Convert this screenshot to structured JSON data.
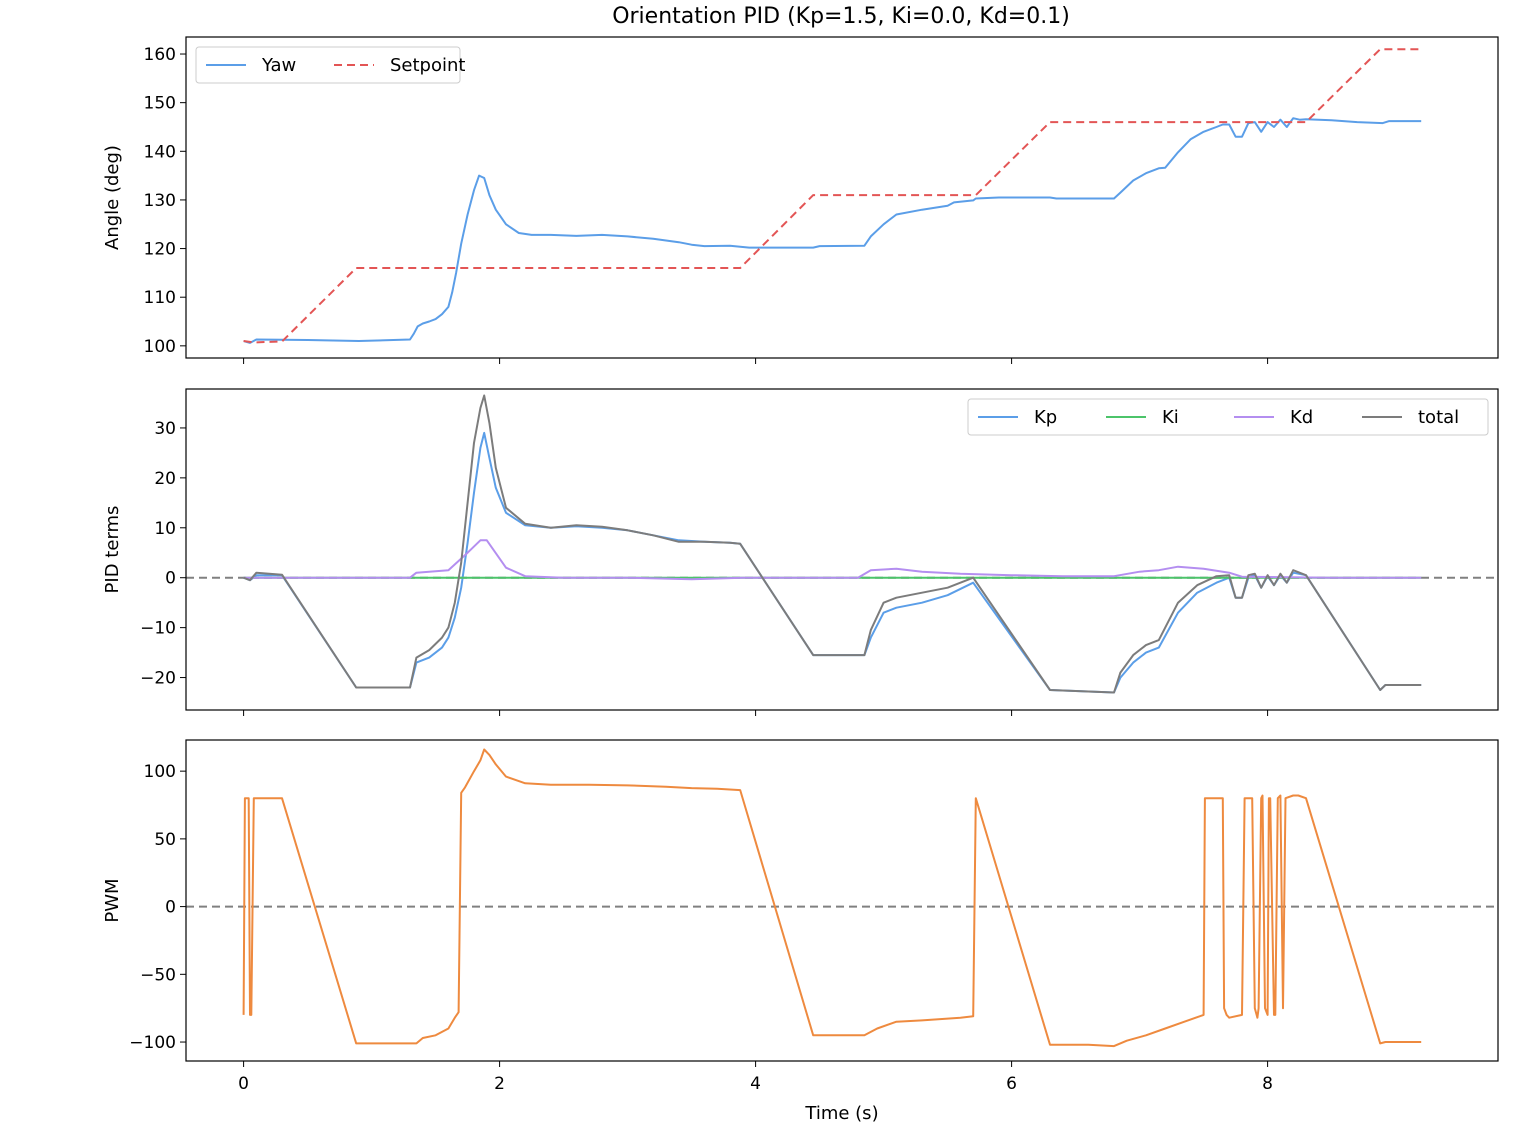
{
  "title": "Orientation PID  (Kp=1.5, Ki=0.0, Kd=0.1)",
  "chart_data": [
    {
      "type": "line",
      "ylabel": "Angle (deg)",
      "xlabel": "",
      "xlim": [
        -0.45,
        9.8
      ],
      "ylim": [
        97.5,
        163.5
      ],
      "xticks": [
        0,
        2,
        4,
        6,
        8
      ],
      "show_xticklabels": false,
      "yticks": [
        100,
        110,
        120,
        130,
        140,
        150,
        160
      ],
      "grid": false,
      "legend": "top-left",
      "zero_line": false,
      "series": [
        {
          "name": "Yaw",
          "color": "#5b9ee8",
          "dash": "solid",
          "x": [
            0,
            0.05,
            0.1,
            0.5,
            0.9,
            1.3,
            1.33,
            1.36,
            1.4,
            1.45,
            1.5,
            1.55,
            1.6,
            1.63,
            1.66,
            1.7,
            1.75,
            1.8,
            1.84,
            1.88,
            1.92,
            1.97,
            2.05,
            2.15,
            2.25,
            2.4,
            2.6,
            2.8,
            3.0,
            3.2,
            3.4,
            3.5,
            3.6,
            3.8,
            3.95,
            4.2,
            4.45,
            4.5,
            4.85,
            4.9,
            5.0,
            5.1,
            5.3,
            5.5,
            5.55,
            5.7,
            5.72,
            5.9,
            6.3,
            6.35,
            6.8,
            6.85,
            6.95,
            7.05,
            7.15,
            7.2,
            7.3,
            7.4,
            7.5,
            7.6,
            7.65,
            7.7,
            7.75,
            7.8,
            7.85,
            7.9,
            7.95,
            8.0,
            8.05,
            8.1,
            8.15,
            8.2,
            8.25,
            8.3,
            8.5,
            8.7,
            8.9,
            8.95,
            9.2
          ],
          "values": [
            101,
            100.6,
            101.3,
            101.2,
            101,
            101.3,
            102.5,
            104,
            104.6,
            105,
            105.5,
            106.5,
            108,
            111,
            115,
            121,
            127,
            132,
            135,
            134.5,
            131,
            128,
            125,
            123.2,
            122.8,
            122.8,
            122.6,
            122.8,
            122.5,
            122,
            121.3,
            120.8,
            120.5,
            120.6,
            120.2,
            120.2,
            120.2,
            120.5,
            120.6,
            122.5,
            125,
            127,
            128,
            128.8,
            129.5,
            129.9,
            130.3,
            130.5,
            130.5,
            130.3,
            130.3,
            131.5,
            134,
            135.5,
            136.5,
            136.6,
            139.8,
            142.5,
            144,
            145,
            145.5,
            145.5,
            143,
            143,
            145.8,
            146,
            144,
            146,
            145,
            146.5,
            145,
            146.8,
            146.5,
            146.6,
            146.4,
            146,
            145.8,
            146.2,
            146.2
          ]
        },
        {
          "name": "Setpoint",
          "color": "#e35555",
          "dash": "dashed",
          "x": [
            0,
            0.08,
            0.3,
            0.88,
            3.88,
            4.45,
            5.72,
            6.3,
            8.3,
            8.88,
            9.2
          ],
          "values": [
            101,
            100.7,
            100.9,
            116,
            116,
            131,
            131,
            146,
            146,
            161,
            161
          ]
        }
      ]
    },
    {
      "type": "line",
      "ylabel": "PID terms",
      "xlabel": "",
      "xlim": [
        -0.45,
        9.8
      ],
      "ylim": [
        -26.5,
        37.8
      ],
      "xticks": [
        0,
        2,
        4,
        6,
        8
      ],
      "show_xticklabels": false,
      "yticks": [
        -20,
        -10,
        0,
        10,
        20,
        30
      ],
      "grid": false,
      "legend": "top-right",
      "zero_line": true,
      "series": [
        {
          "name": "Kp",
          "color": "#5b9ee8",
          "dash": "solid",
          "x": [
            0,
            0.05,
            0.1,
            0.3,
            0.88,
            1.3,
            1.35,
            1.45,
            1.55,
            1.6,
            1.65,
            1.7,
            1.75,
            1.8,
            1.85,
            1.88,
            1.92,
            1.97,
            2.05,
            2.2,
            2.4,
            2.6,
            2.8,
            3.0,
            3.2,
            3.4,
            3.6,
            3.8,
            3.88,
            4.45,
            4.85,
            4.9,
            5.0,
            5.1,
            5.3,
            5.5,
            5.7,
            6.3,
            6.8,
            6.85,
            6.95,
            7.05,
            7.15,
            7.3,
            7.45,
            7.6,
            7.7,
            7.75,
            7.8,
            7.85,
            7.9,
            7.95,
            8.0,
            8.05,
            8.1,
            8.15,
            8.2,
            8.3,
            8.88,
            8.92,
            9.2
          ],
          "values": [
            0,
            -0.5,
            0.5,
            0.5,
            -22,
            -22,
            -17,
            -16,
            -14,
            -12,
            -8,
            -2,
            7,
            17,
            26,
            29,
            24,
            18,
            13,
            10.5,
            10,
            10.3,
            10,
            9.5,
            8.5,
            7.5,
            7.2,
            7,
            6.8,
            -15.5,
            -15.5,
            -12,
            -7,
            -6,
            -5,
            -3.5,
            -1,
            -22.5,
            -23,
            -20,
            -17,
            -15,
            -14,
            -7,
            -3,
            -1,
            0,
            -4,
            -4,
            0,
            0.5,
            -2,
            0.3,
            -1.5,
            0.5,
            -1,
            1,
            0.5,
            -22.5,
            -21.5,
            -21.5
          ]
        },
        {
          "name": "Ki",
          "color": "#4cc46a",
          "dash": "solid",
          "x": [
            0,
            9.2
          ],
          "values": [
            0,
            0
          ]
        },
        {
          "name": "Kd",
          "color": "#b48ef0",
          "dash": "solid",
          "x": [
            0,
            1.3,
            1.35,
            1.6,
            1.75,
            1.85,
            1.9,
            2.05,
            2.2,
            2.5,
            3.0,
            3.5,
            3.9,
            4.5,
            4.8,
            4.9,
            5.1,
            5.3,
            5.6,
            6.0,
            6.4,
            6.8,
            7.0,
            7.15,
            7.3,
            7.5,
            7.7,
            7.8,
            8.5,
            9.2
          ],
          "values": [
            0,
            0,
            1,
            1.5,
            5,
            7.5,
            7.5,
            2,
            0.3,
            0,
            0,
            -0.3,
            0,
            0,
            0,
            1.5,
            1.8,
            1.2,
            0.8,
            0.5,
            0.3,
            0.3,
            1.2,
            1.5,
            2.2,
            1.8,
            1,
            0.2,
            0,
            0
          ]
        },
        {
          "name": "total",
          "color": "#7c7c7c",
          "dash": "solid",
          "x": [
            0,
            0.05,
            0.1,
            0.3,
            0.88,
            1.3,
            1.35,
            1.45,
            1.55,
            1.6,
            1.65,
            1.7,
            1.75,
            1.8,
            1.85,
            1.88,
            1.92,
            1.97,
            2.05,
            2.2,
            2.4,
            2.6,
            2.8,
            3.0,
            3.2,
            3.4,
            3.6,
            3.8,
            3.88,
            4.45,
            4.85,
            4.9,
            5.0,
            5.1,
            5.3,
            5.5,
            5.7,
            6.3,
            6.8,
            6.85,
            6.95,
            7.05,
            7.15,
            7.3,
            7.45,
            7.6,
            7.7,
            7.75,
            7.8,
            7.85,
            7.9,
            7.95,
            8.0,
            8.05,
            8.1,
            8.15,
            8.2,
            8.3,
            8.88,
            8.92,
            9.2
          ],
          "values": [
            0,
            -0.5,
            1,
            0.6,
            -22,
            -22,
            -16,
            -14.5,
            -12,
            -10,
            -5,
            3,
            15,
            27,
            34,
            36.5,
            31,
            22,
            14,
            10.8,
            10,
            10.5,
            10.2,
            9.5,
            8.5,
            7.2,
            7.2,
            7,
            6.8,
            -15.5,
            -15.5,
            -10.5,
            -5,
            -4,
            -3,
            -2,
            0,
            -22.5,
            -23,
            -19,
            -15.5,
            -13.5,
            -12.5,
            -5,
            -1.5,
            0.3,
            0.5,
            -4,
            -4,
            0.5,
            0.8,
            -2,
            0.5,
            -1.5,
            0.8,
            -1,
            1.5,
            0.5,
            -22.5,
            -21.5,
            -21.5
          ]
        }
      ]
    },
    {
      "type": "line",
      "ylabel": "PWM",
      "xlabel": "Time (s)",
      "xlim": [
        -0.45,
        9.8
      ],
      "ylim": [
        -114,
        123
      ],
      "xticks": [
        0,
        2,
        4,
        6,
        8
      ],
      "show_xticklabels": true,
      "yticks": [
        -100,
        -50,
        0,
        50,
        100
      ],
      "grid": false,
      "legend": "none",
      "zero_line": true,
      "series": [
        {
          "name": "",
          "color": "#ee8a3f",
          "dash": "solid",
          "x": [
            0,
            0.01,
            0.04,
            0.05,
            0.06,
            0.08,
            0.09,
            0.3,
            0.88,
            1.35,
            1.4,
            1.5,
            1.6,
            1.65,
            1.68,
            1.7,
            1.73,
            1.8,
            1.85,
            1.88,
            1.92,
            1.97,
            2.05,
            2.2,
            2.4,
            2.7,
            3.0,
            3.3,
            3.5,
            3.7,
            3.88,
            4.45,
            4.85,
            4.95,
            5.1,
            5.3,
            5.6,
            5.7,
            5.72,
            6.3,
            6.6,
            6.8,
            6.9,
            7.05,
            7.2,
            7.35,
            7.5,
            7.51,
            7.65,
            7.66,
            7.68,
            7.7,
            7.8,
            7.82,
            7.88,
            7.9,
            7.92,
            7.93,
            7.95,
            7.96,
            7.98,
            8.0,
            8.01,
            8.02,
            8.05,
            8.06,
            8.08,
            8.1,
            8.12,
            8.14,
            8.2,
            8.24,
            8.3,
            8.88,
            8.92,
            9.2
          ],
          "values": [
            -80,
            80,
            80,
            -80,
            -80,
            80,
            80,
            80,
            -101,
            -101,
            -97,
            -95,
            -90,
            -82,
            -78,
            84,
            88,
            100,
            108,
            116,
            112,
            105,
            96,
            91,
            90,
            90,
            89.5,
            88.5,
            87.5,
            87,
            86,
            -95,
            -95,
            -90,
            -85,
            -84,
            -82,
            -81,
            80,
            -102,
            -102,
            -103,
            -99,
            -95,
            -90,
            -85,
            -80,
            80,
            80,
            -75,
            -80,
            -82,
            -80,
            80,
            80,
            -75,
            -82,
            -75,
            80,
            82,
            -75,
            -80,
            80,
            80,
            -80,
            -80,
            80,
            82,
            -75,
            80,
            82,
            82,
            80,
            -101,
            -100,
            -100
          ]
        }
      ]
    }
  ]
}
